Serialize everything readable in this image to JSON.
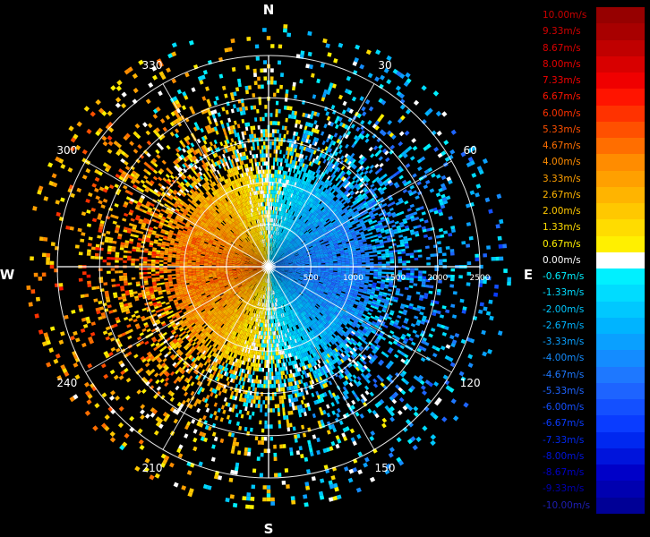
{
  "chart_data": {
    "type": "heatmap",
    "title": "",
    "subtitle": "",
    "projection": "polar (plan position indicator)",
    "quantity": "radial velocity",
    "unit": "m/s",
    "cardinal_labels": {
      "north": "N",
      "east": "E",
      "south": "S",
      "west": "W"
    },
    "bearing_ticks": [
      "30",
      "60",
      "120",
      "150",
      "210",
      "240",
      "300",
      "330"
    ],
    "bearing_tick_values": [
      30,
      60,
      120,
      150,
      210,
      240,
      300,
      330
    ],
    "range_ticks": [
      "500",
      "1000",
      "1500",
      "2000",
      "2500"
    ],
    "range_tick_values": [
      500,
      1000,
      1500,
      2000,
      2500
    ],
    "range_max": 2500,
    "grid": true,
    "color_scale": {
      "range": [
        -10,
        10
      ],
      "placement": "right",
      "entries": [
        {
          "label": "10.00m/s",
          "value": 10.0,
          "color": "#960000",
          "text_color": "#c80000"
        },
        {
          "label": "9.33m/s",
          "value": 9.33,
          "color": "#a80000",
          "text_color": "#d00000"
        },
        {
          "label": "8.67m/s",
          "value": 8.67,
          "color": "#c00000",
          "text_color": "#dc0000"
        },
        {
          "label": "8.00m/s",
          "value": 8.0,
          "color": "#d80000",
          "text_color": "#e80000"
        },
        {
          "label": "7.33m/s",
          "value": 7.33,
          "color": "#f00000",
          "text_color": "#f40000"
        },
        {
          "label": "6.67m/s",
          "value": 6.67,
          "color": "#ff1400",
          "text_color": "#ff1400"
        },
        {
          "label": "6.00m/s",
          "value": 6.0,
          "color": "#ff3200",
          "text_color": "#ff3200"
        },
        {
          "label": "5.33m/s",
          "value": 5.33,
          "color": "#ff5000",
          "text_color": "#ff5000"
        },
        {
          "label": "4.67m/s",
          "value": 4.67,
          "color": "#ff6e00",
          "text_color": "#ff6e00"
        },
        {
          "label": "4.00m/s",
          "value": 4.0,
          "color": "#ff8c00",
          "text_color": "#ff8c00"
        },
        {
          "label": "3.33m/s",
          "value": 3.33,
          "color": "#ffa000",
          "text_color": "#ffa000"
        },
        {
          "label": "2.67m/s",
          "value": 2.67,
          "color": "#ffb400",
          "text_color": "#ffb400"
        },
        {
          "label": "2.00m/s",
          "value": 2.0,
          "color": "#ffc800",
          "text_color": "#ffc800"
        },
        {
          "label": "1.33m/s",
          "value": 1.33,
          "color": "#ffdc00",
          "text_color": "#ffdc00"
        },
        {
          "label": "0.67m/s",
          "value": 0.67,
          "color": "#fff000",
          "text_color": "#fff000"
        },
        {
          "label": "0.00m/s",
          "value": 0.0,
          "color": "#ffffff",
          "text_color": "#ffffff"
        },
        {
          "label": "-0.67m/s",
          "value": -0.67,
          "color": "#00f0ff",
          "text_color": "#00f0ff"
        },
        {
          "label": "-1.33m/s",
          "value": -1.33,
          "color": "#00dcff",
          "text_color": "#00dcff"
        },
        {
          "label": "-2.00m/s",
          "value": -2.0,
          "color": "#00c8ff",
          "text_color": "#00c8ff"
        },
        {
          "label": "-2.67m/s",
          "value": -2.67,
          "color": "#00b4ff",
          "text_color": "#00b4ff"
        },
        {
          "label": "-3.33m/s",
          "value": -3.33,
          "color": "#0aa0ff",
          "text_color": "#0aa0ff"
        },
        {
          "label": "-4.00m/s",
          "value": -4.0,
          "color": "#148cff",
          "text_color": "#148cff"
        },
        {
          "label": "-4.67m/s",
          "value": -4.67,
          "color": "#1e78ff",
          "text_color": "#1e78ff"
        },
        {
          "label": "-5.33m/s",
          "value": -5.33,
          "color": "#1e64ff",
          "text_color": "#1e64ff"
        },
        {
          "label": "-6.00m/s",
          "value": -6.0,
          "color": "#1450ff",
          "text_color": "#1450ff"
        },
        {
          "label": "-6.67m/s",
          "value": -6.67,
          "color": "#0a3cff",
          "text_color": "#0a3cff"
        },
        {
          "label": "-7.33m/s",
          "value": -7.33,
          "color": "#0028f0",
          "text_color": "#0028f0"
        },
        {
          "label": "-8.00m/s",
          "value": -8.0,
          "color": "#0014dc",
          "text_color": "#0014dc"
        },
        {
          "label": "-8.67m/s",
          "value": -8.67,
          "color": "#0000c8",
          "text_color": "#0000c8"
        },
        {
          "label": "-9.33m/s",
          "value": -9.33,
          "color": "#0000b0",
          "text_color": "#0000b0"
        },
        {
          "label": "-10.00m/s",
          "value": -10.0,
          "color": "#000096",
          "text_color": "#1e1eb4"
        }
      ]
    },
    "field": {
      "description": "Dense near-range returns; westward half (bearing 180-360) mostly positive/warm; eastward half (0-180) mostly negative/cool; sparse scattered returns at long range.",
      "west_half_mean": 3.4,
      "east_half_mean": -3.8
    }
  },
  "theme": {
    "background": "#000000",
    "grid_color": "#ffffff",
    "label_color": "#ffffff"
  }
}
